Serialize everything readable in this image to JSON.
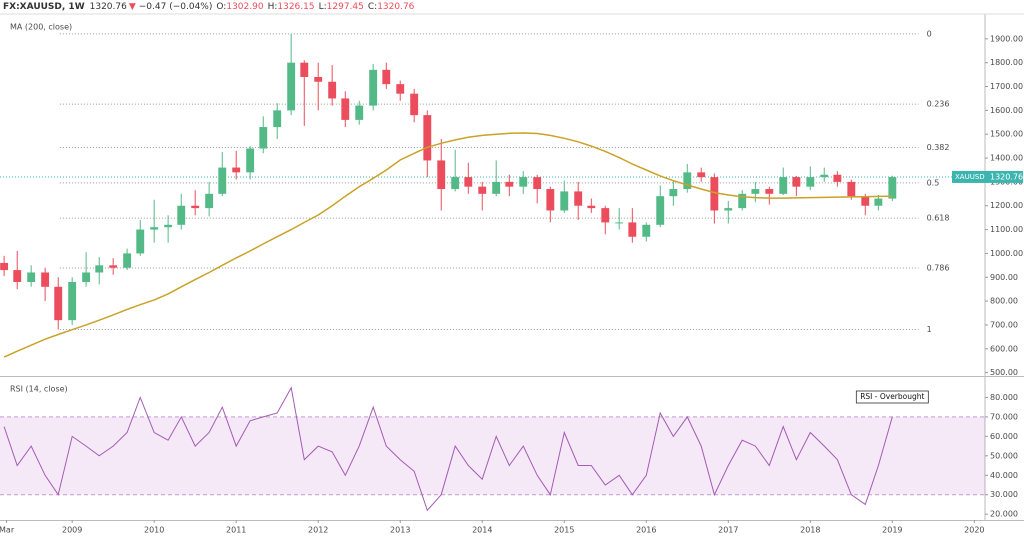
{
  "chart_data": [
    {
      "type": "candlestick",
      "header": {
        "symbol": "FX:XAUUSD, 1W",
        "last": "1320.76",
        "arrow": "▼",
        "change": "−0.47 (−0.04%)",
        "ohlc": [
          {
            "label": "O:",
            "value": "1302.90"
          },
          {
            "label": "H:",
            "value": "1326.15"
          },
          {
            "label": "L:",
            "value": "1297.45"
          },
          {
            "label": "C:",
            "value": "1320.76"
          }
        ]
      },
      "indicator_label": "MA (200, close)",
      "x": [
        2008.17,
        2008.33,
        2008.5,
        2008.67,
        2008.83,
        2009,
        2009.17,
        2009.33,
        2009.5,
        2009.67,
        2009.83,
        2010,
        2010.17,
        2010.33,
        2010.5,
        2010.67,
        2010.83,
        2011,
        2011.17,
        2011.33,
        2011.5,
        2011.67,
        2011.83,
        2012,
        2012.17,
        2012.33,
        2012.5,
        2012.67,
        2012.83,
        2013,
        2013.17,
        2013.33,
        2013.5,
        2013.67,
        2013.83,
        2014,
        2014.17,
        2014.33,
        2014.5,
        2014.67,
        2014.83,
        2015,
        2015.17,
        2015.33,
        2015.5,
        2015.67,
        2015.83,
        2016,
        2016.17,
        2016.33,
        2016.5,
        2016.67,
        2016.83,
        2017,
        2017.17,
        2017.33,
        2017.5,
        2017.67,
        2017.83,
        2018,
        2018.17,
        2018.33,
        2018.5,
        2018.67,
        2018.83,
        2019
      ],
      "open": [
        960,
        930,
        880,
        920,
        860,
        720,
        880,
        920,
        950,
        940,
        1000,
        1100,
        1110,
        1120,
        1200,
        1190,
        1250,
        1360,
        1340,
        1440,
        1530,
        1600,
        1800,
        1740,
        1720,
        1650,
        1560,
        1620,
        1770,
        1710,
        1670,
        1580,
        1390,
        1270,
        1320,
        1280,
        1250,
        1300,
        1280,
        1320,
        1270,
        1180,
        1260,
        1200,
        1190,
        1130,
        1130,
        1070,
        1120,
        1240,
        1270,
        1340,
        1320,
        1180,
        1190,
        1250,
        1270,
        1250,
        1320,
        1280,
        1320,
        1330,
        1300,
        1240,
        1200,
        1230
      ],
      "high": [
        990,
        1010,
        950,
        940,
        900,
        900,
        1005,
        985,
        980,
        1020,
        1140,
        1225,
        1160,
        1250,
        1265,
        1300,
        1425,
        1430,
        1450,
        1575,
        1630,
        1921,
        1810,
        1800,
        1790,
        1680,
        1640,
        1795,
        1800,
        1725,
        1690,
        1600,
        1480,
        1435,
        1380,
        1300,
        1390,
        1330,
        1345,
        1330,
        1280,
        1305,
        1300,
        1230,
        1200,
        1190,
        1190,
        1130,
        1285,
        1305,
        1375,
        1360,
        1335,
        1220,
        1265,
        1300,
        1280,
        1360,
        1325,
        1365,
        1360,
        1345,
        1310,
        1250,
        1245,
        1326
      ],
      "low": [
        905,
        850,
        860,
        800,
        681,
        700,
        860,
        870,
        910,
        930,
        990,
        1045,
        1045,
        1100,
        1160,
        1155,
        1240,
        1310,
        1310,
        1420,
        1480,
        1580,
        1535,
        1600,
        1620,
        1530,
        1540,
        1600,
        1690,
        1640,
        1550,
        1320,
        1180,
        1260,
        1250,
        1180,
        1240,
        1240,
        1250,
        1210,
        1130,
        1170,
        1140,
        1170,
        1080,
        1100,
        1045,
        1050,
        1110,
        1200,
        1255,
        1300,
        1125,
        1125,
        1180,
        1215,
        1205,
        1245,
        1240,
        1265,
        1300,
        1280,
        1225,
        1160,
        1180,
        1220
      ],
      "close": [
        930,
        880,
        920,
        860,
        720,
        880,
        920,
        950,
        940,
        1000,
        1100,
        1110,
        1120,
        1200,
        1190,
        1250,
        1360,
        1340,
        1440,
        1530,
        1600,
        1800,
        1740,
        1720,
        1650,
        1560,
        1620,
        1770,
        1710,
        1670,
        1580,
        1390,
        1270,
        1320,
        1280,
        1250,
        1300,
        1280,
        1320,
        1270,
        1180,
        1260,
        1200,
        1190,
        1130,
        1130,
        1070,
        1120,
        1240,
        1270,
        1340,
        1320,
        1180,
        1190,
        1250,
        1270,
        1250,
        1320,
        1280,
        1320,
        1330,
        1300,
        1240,
        1200,
        1230,
        1320
      ],
      "up_color": "#53b987",
      "down_color": "#eb4d5c",
      "ma": {
        "color": "#c9a227",
        "values": [
          565,
          590,
          615,
          640,
          660,
          680,
          700,
          720,
          742,
          765,
          785,
          805,
          830,
          860,
          890,
          920,
          950,
          981,
          1010,
          1040,
          1070,
          1100,
          1130,
          1161,
          1200,
          1240,
          1280,
          1315,
          1350,
          1392,
          1420,
          1445,
          1462,
          1476,
          1487,
          1495,
          1500,
          1504,
          1505,
          1503,
          1495,
          1483,
          1468,
          1450,
          1428,
          1402,
          1375,
          1350,
          1325,
          1305,
          1287,
          1270,
          1255,
          1245,
          1238,
          1234,
          1232,
          1232,
          1233,
          1234,
          1235,
          1236,
          1237,
          1238,
          1239,
          1240
        ]
      },
      "fib_x": [
        2008.85,
        2019.32
      ],
      "fib_levels": [
        {
          "ratio": 0,
          "price": 1921
        },
        {
          "ratio": 0.236,
          "price": 1626
        },
        {
          "ratio": 0.382,
          "price": 1444
        },
        {
          "ratio": 0.5,
          "price": 1296
        },
        {
          "ratio": 0.618,
          "price": 1148
        },
        {
          "ratio": 0.786,
          "price": 939
        },
        {
          "ratio": 1,
          "price": 681
        }
      ],
      "price_line": {
        "label": "XAUUSD",
        "value": 1320.76,
        "color": "#3cb5b0"
      },
      "xlim": [
        2008.12,
        2020.13
      ],
      "ylim": [
        490,
        2000
      ],
      "yticks": [
        {
          "value": 500,
          "label": "500.00"
        },
        {
          "value": 600,
          "label": "600.00"
        },
        {
          "value": 700,
          "label": "700.00"
        },
        {
          "value": 800,
          "label": "800.00"
        },
        {
          "value": 900,
          "label": "900.00"
        },
        {
          "value": 1000,
          "label": "1000.00"
        },
        {
          "value": 1100,
          "label": "1100.00"
        },
        {
          "value": 1200,
          "label": "1200.00"
        },
        {
          "value": 1300,
          "label": "1300.00"
        },
        {
          "value": 1400,
          "label": "1400.00"
        },
        {
          "value": 1500,
          "label": "1500.00"
        },
        {
          "value": 1600,
          "label": "1600.00"
        },
        {
          "value": 1700,
          "label": "1700.00"
        },
        {
          "value": 1800,
          "label": "1800.00"
        },
        {
          "value": 1900,
          "label": "1900.00"
        }
      ]
    },
    {
      "type": "line",
      "title": "RSI (14, close)",
      "x": [
        2008.17,
        2008.33,
        2008.5,
        2008.67,
        2008.83,
        2009,
        2009.17,
        2009.33,
        2009.5,
        2009.67,
        2009.83,
        2010,
        2010.17,
        2010.33,
        2010.5,
        2010.67,
        2010.83,
        2011,
        2011.17,
        2011.33,
        2011.5,
        2011.67,
        2011.83,
        2012,
        2012.17,
        2012.33,
        2012.5,
        2012.67,
        2012.83,
        2013,
        2013.17,
        2013.33,
        2013.5,
        2013.67,
        2013.83,
        2014,
        2014.17,
        2014.33,
        2014.5,
        2014.67,
        2014.83,
        2015,
        2015.17,
        2015.33,
        2015.5,
        2015.67,
        2015.83,
        2016,
        2016.17,
        2016.33,
        2016.5,
        2016.67,
        2016.83,
        2017,
        2017.17,
        2017.33,
        2017.5,
        2017.67,
        2017.83,
        2018,
        2018.17,
        2018.33,
        2018.5,
        2018.67,
        2018.83,
        2019
      ],
      "values": [
        65,
        45,
        55,
        40,
        30,
        60,
        55,
        50,
        55,
        62,
        80,
        62,
        58,
        70,
        55,
        62,
        75,
        55,
        68,
        70,
        72,
        85,
        48,
        55,
        52,
        40,
        55,
        75,
        55,
        48,
        42,
        22,
        30,
        55,
        45,
        38,
        60,
        45,
        55,
        40,
        30,
        62,
        45,
        45,
        35,
        40,
        30,
        40,
        72,
        60,
        70,
        55,
        30,
        45,
        58,
        55,
        45,
        65,
        48,
        62,
        55,
        48,
        30,
        25,
        45,
        70
      ],
      "color": "#a45bb5",
      "band": [
        30,
        70
      ],
      "band_color": "#9c27b0",
      "annotation": "RSI - Overbought",
      "xlim": [
        2008.12,
        2020.13
      ],
      "xticks": [
        {
          "value": 2008.2,
          "label": "Mar"
        },
        2009,
        2010,
        2011,
        2012,
        2013,
        2014,
        2015,
        2016,
        2017,
        2018,
        2019,
        2020
      ],
      "ylim": [
        17,
        90
      ],
      "yticks": [
        {
          "value": 20,
          "label": "20.000"
        },
        {
          "value": 30,
          "label": "30.000"
        },
        {
          "value": 40,
          "label": "40.000"
        },
        {
          "value": 50,
          "label": "50.000"
        },
        {
          "value": 60,
          "label": "60.000"
        },
        {
          "value": 70,
          "label": "70.000"
        },
        {
          "value": 80,
          "label": "80.000"
        }
      ]
    }
  ]
}
